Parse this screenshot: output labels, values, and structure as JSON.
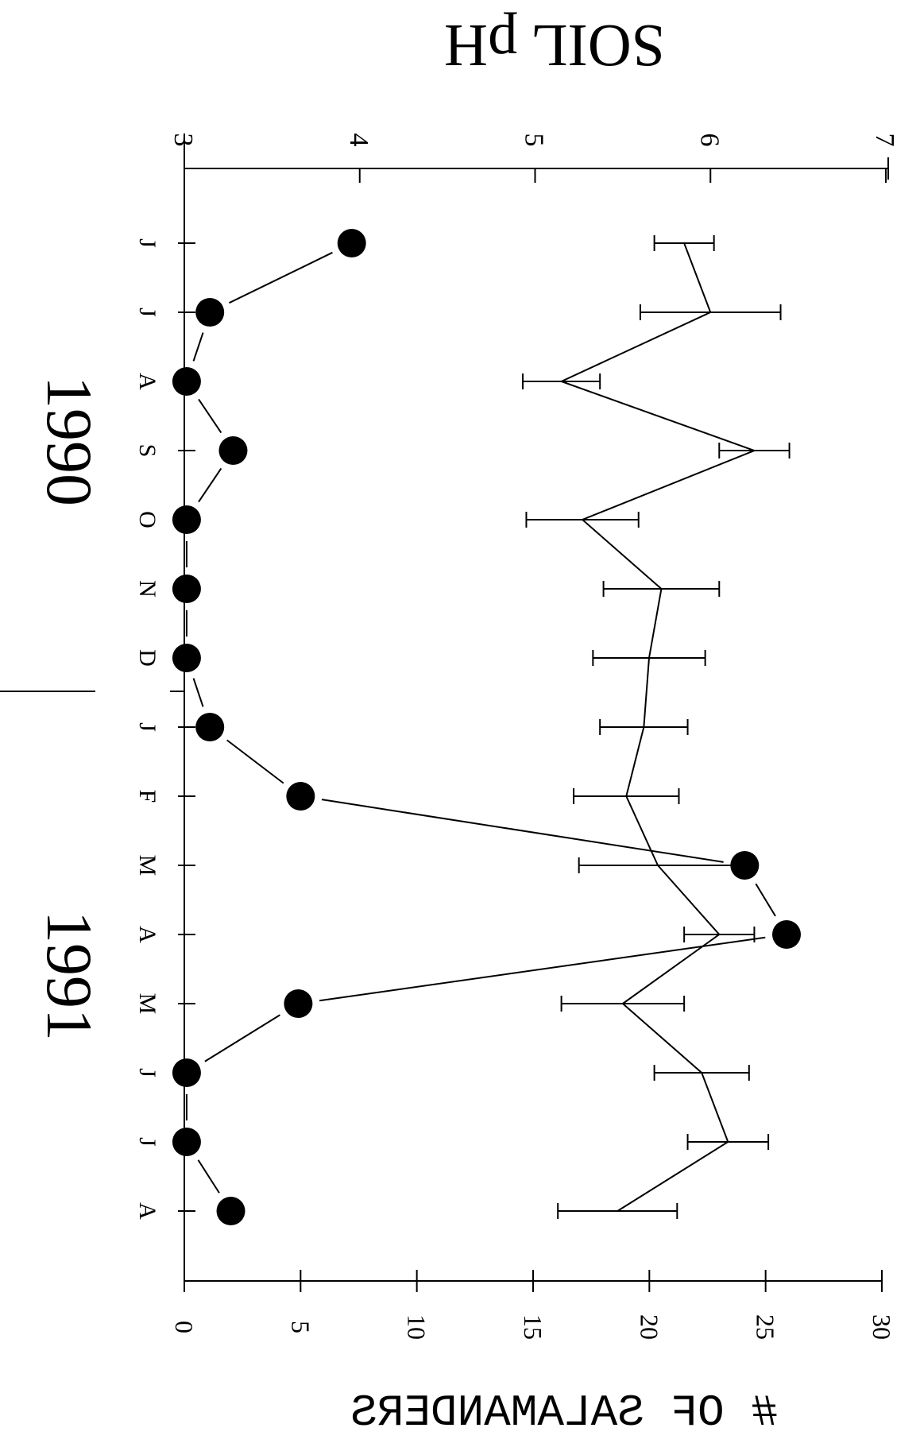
{
  "chart_data": {
    "type": "line",
    "layout": "rotated-90-clockwise",
    "categories": [
      "J",
      "J",
      "A",
      "S",
      "O",
      "N",
      "D",
      "J",
      "F",
      "M",
      "A",
      "M",
      "J",
      "J",
      "A"
    ],
    "year_labels": [
      "1990",
      "1991"
    ],
    "left_axis": {
      "label": "SOIL pH",
      "range": [
        3,
        7
      ],
      "ticks": [
        3,
        4,
        5,
        6,
        7
      ]
    },
    "right_axis": {
      "label": "# OF SALAMANDERS",
      "range": [
        0,
        30
      ],
      "ticks": [
        0,
        5,
        10,
        15,
        20,
        25,
        30
      ]
    },
    "series": [
      {
        "axis": "right",
        "marker": "filled-circle",
        "values": [
          7.2,
          1.1,
          0.1,
          2.1,
          0.1,
          0.1,
          0.1,
          1.1,
          5.0,
          24.1,
          25.9,
          4.9,
          0.1,
          0.1,
          2.0
        ]
      },
      {
        "axis": "left",
        "marker": "none",
        "values": [
          5.85,
          6.0,
          5.15,
          6.25,
          5.27,
          5.72,
          5.65,
          5.62,
          5.52,
          5.7,
          6.05,
          5.5,
          5.95,
          6.1,
          5.47
        ],
        "error": [
          0.17,
          0.4,
          0.22,
          0.2,
          0.32,
          0.33,
          0.32,
          0.25,
          0.3,
          0.45,
          0.2,
          0.35,
          0.27,
          0.23,
          0.34
        ]
      }
    ],
    "grid": false,
    "legend": "none"
  }
}
